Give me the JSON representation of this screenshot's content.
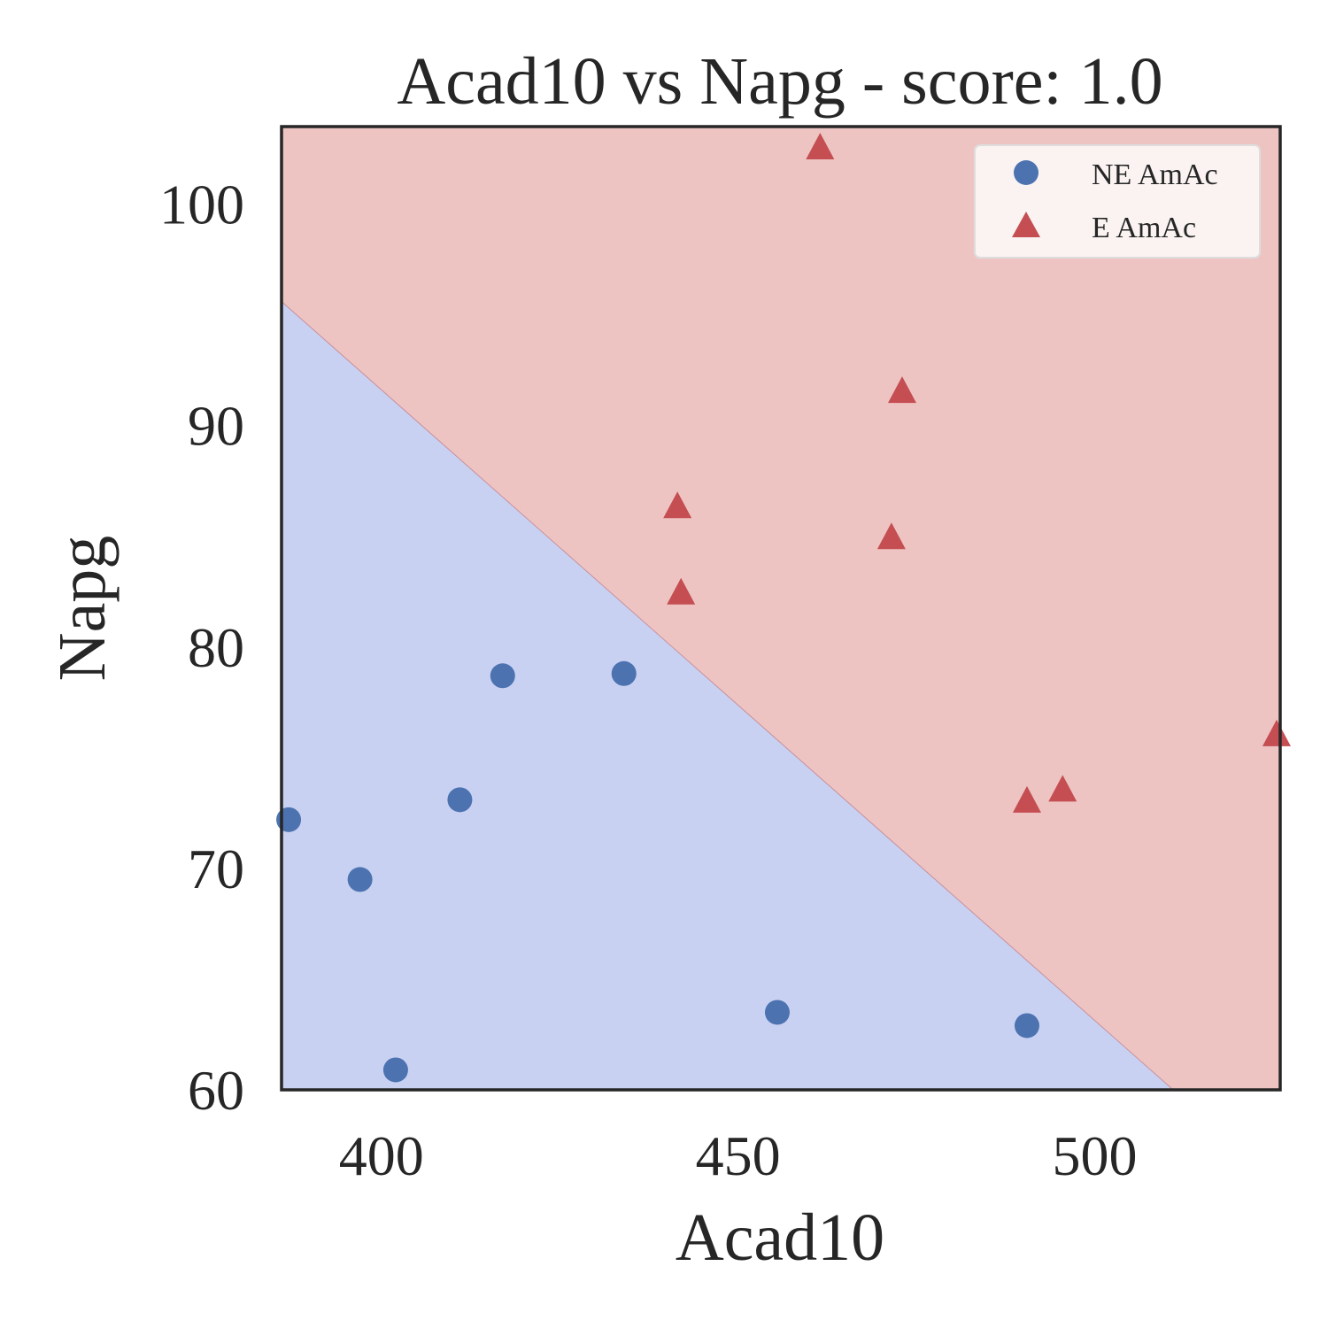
{
  "colors": {
    "region_ne": "#c8d1f2",
    "region_e": "#eec4c3",
    "marker_ne": "#4c72b0",
    "marker_e": "#c44e52",
    "axes_frame": "#262626",
    "legend_bg": "#faf3f2",
    "legend_border": "#dddddd"
  },
  "chart_data": {
    "type": "scatter",
    "title": "Acad10 vs Napg - score: 1.0",
    "xlabel": "Acad10",
    "ylabel": "Napg",
    "xlim": [
      386,
      526
    ],
    "ylim": [
      60,
      103.5
    ],
    "xticks": [
      400,
      450,
      500
    ],
    "yticks": [
      60,
      70,
      80,
      90,
      100
    ],
    "grid": false,
    "legend_position": "top-right",
    "decision_boundary": {
      "points": [
        [
          386,
          95.6
        ],
        [
          511,
          60
        ]
      ],
      "below_class": "NE AmAc",
      "above_class": "E AmAc"
    },
    "series": [
      {
        "name": "NE AmAc",
        "marker": "circle",
        "points": [
          [
            387,
            72.2
          ],
          [
            397,
            69.5
          ],
          [
            402,
            60.9
          ],
          [
            411,
            73.1
          ],
          [
            417,
            78.7
          ],
          [
            434,
            78.8
          ],
          [
            455.5,
            63.5
          ],
          [
            490.5,
            62.9
          ]
        ]
      },
      {
        "name": "E AmAc",
        "marker": "triangle",
        "points": [
          [
            461.5,
            102.5
          ],
          [
            473,
            91.5
          ],
          [
            441.5,
            86.3
          ],
          [
            471.5,
            84.9
          ],
          [
            442,
            82.4
          ],
          [
            490.5,
            73.0
          ],
          [
            495.5,
            73.5
          ],
          [
            525.5,
            76.0
          ]
        ]
      }
    ]
  }
}
